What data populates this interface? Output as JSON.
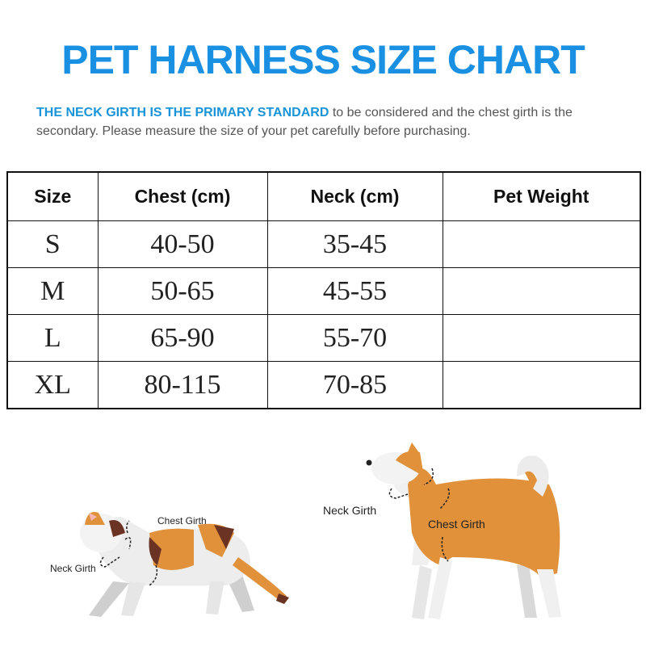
{
  "title": "PET HARNESS SIZE CHART",
  "intro": {
    "highlight": "THE NECK GIRTH IS THE PRIMARY STANDARD",
    "text": " to be considered and the chest girth is the secondary. Please measure the size of your pet carefully before purchasing."
  },
  "table": {
    "headers": [
      "Size",
      "Chest (cm)",
      "Neck (cm)",
      "Pet Weight"
    ],
    "rows": [
      [
        "S",
        "40-50",
        "35-45",
        ""
      ],
      [
        "M",
        "50-65",
        "45-55",
        ""
      ],
      [
        "L",
        "65-90",
        "55-70",
        ""
      ],
      [
        "XL",
        "80-115",
        "70-85",
        ""
      ]
    ]
  },
  "illustrations": {
    "cat": {
      "neck_label": "Neck  Girth",
      "chest_label": "Chest Girth"
    },
    "dog": {
      "neck_label": "Neck  Girth",
      "chest_label": "Chest Girth"
    }
  },
  "colors": {
    "title": "#1990e2",
    "highlight": "#1a94d8",
    "orange": "#e0913a",
    "brown": "#6b3323"
  }
}
